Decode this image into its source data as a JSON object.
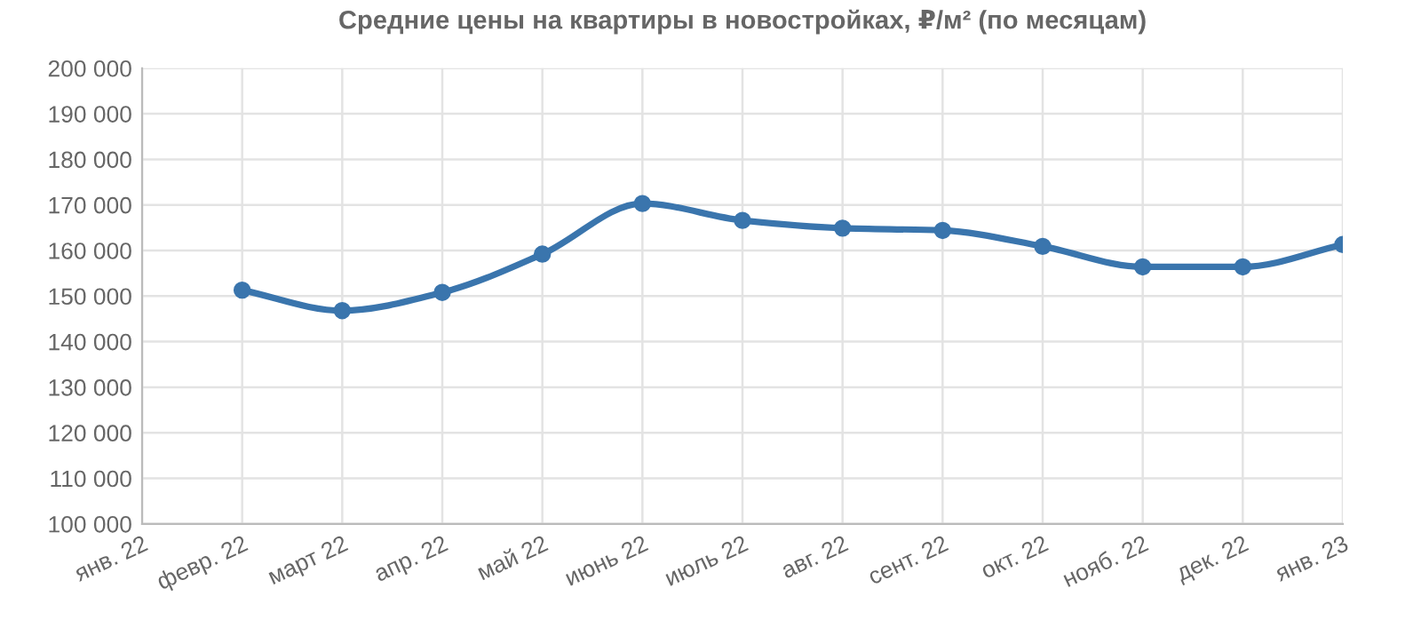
{
  "chart_data": {
    "type": "line",
    "title": "Средние цены на квартиры в новостройках, ₽/м² (по месяцам)",
    "categories": [
      "янв. 22",
      "февр. 22",
      "март 22",
      "апр. 22",
      "май 22",
      "июнь 22",
      "июль 22",
      "авг. 22",
      "сент. 22",
      "окт. 22",
      "нояб. 22",
      "дек. 22",
      "янв. 23"
    ],
    "series": [
      {
        "color": "#3a75ad",
        "values": [
          null,
          151300,
          146800,
          150800,
          159200,
          170300,
          166600,
          164900,
          164400,
          160900,
          156400,
          156400,
          161300
        ]
      }
    ],
    "ylim": [
      100000,
      200000
    ],
    "yticks": [
      {
        "value": 100000,
        "label": "100 000"
      },
      {
        "value": 110000,
        "label": "110 000"
      },
      {
        "value": 120000,
        "label": "120 000"
      },
      {
        "value": 130000,
        "label": "130 000"
      },
      {
        "value": 140000,
        "label": "140 000"
      },
      {
        "value": 150000,
        "label": "150 000"
      },
      {
        "value": 160000,
        "label": "160 000"
      },
      {
        "value": 170000,
        "label": "170 000"
      },
      {
        "value": 180000,
        "label": "180 000"
      },
      {
        "value": 190000,
        "label": "190 000"
      },
      {
        "value": 200000,
        "label": "200 000"
      }
    ],
    "grid": true,
    "marker": "circle",
    "line_style": "solid"
  }
}
